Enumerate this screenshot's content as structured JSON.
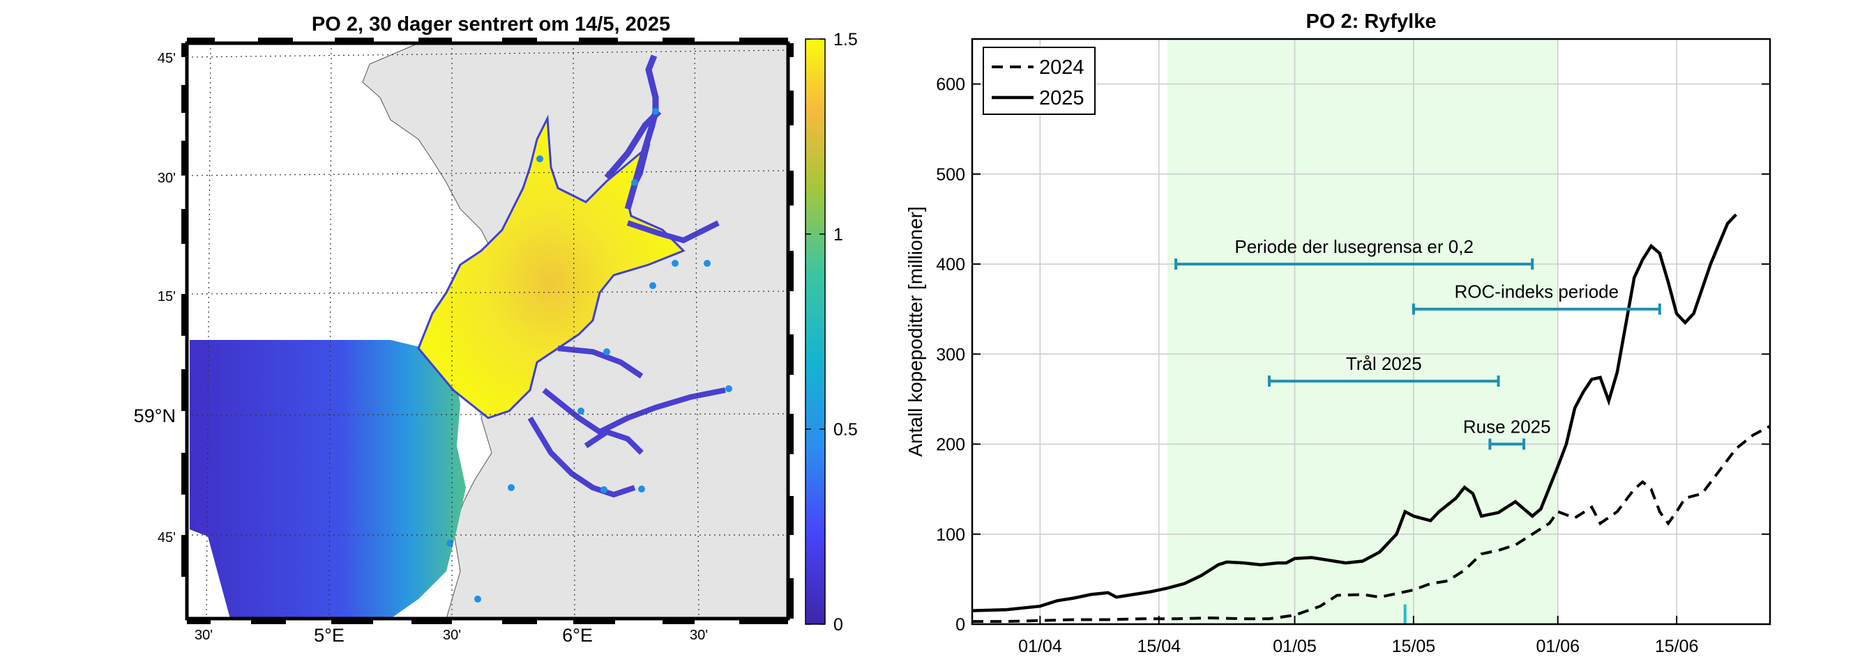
{
  "map_panel": {
    "title": "PO 2, 30 dager sentrert om 14/5, 2025",
    "lat_ticks": [
      "45'",
      "30'",
      "15'",
      "59°N",
      "45'"
    ],
    "lon_ticks": [
      "30'",
      "5°E",
      "30'",
      "6°E",
      "30'"
    ],
    "colorbar": {
      "ticks": [
        "1.5",
        "1",
        "0.5",
        "0"
      ],
      "tick_values": [
        1.5,
        1.0,
        0.5,
        0.0
      ],
      "range": [
        0,
        1.5
      ],
      "colormap": "parula"
    },
    "colors": {
      "land": "#e4e4e4",
      "sea_blank": "#ffffff",
      "station_marker": "#1f8fe8"
    }
  },
  "chart_data": {
    "type": "line",
    "title": "PO 2: Ryfylke",
    "ylabel": "Antall kopepoditter [millioner]",
    "xlabel": "",
    "x_range": [
      "2025-03-24",
      "2025-06-26"
    ],
    "ylim": [
      0,
      650
    ],
    "y_ticks": [
      0,
      100,
      200,
      300,
      400,
      500,
      600
    ],
    "x_ticks": [
      {
        "date": "2025-04-01",
        "label": "01/04"
      },
      {
        "date": "2025-04-15",
        "label": "15/04"
      },
      {
        "date": "2025-05-01",
        "label": "01/05"
      },
      {
        "date": "2025-05-15",
        "label": "15/05"
      },
      {
        "date": "2025-06-01",
        "label": "01/06"
      },
      {
        "date": "2025-06-15",
        "label": "15/06"
      }
    ],
    "grid": true,
    "legend_position": "top-left",
    "shaded_period": {
      "start": "2025-04-16",
      "end": "2025-06-01",
      "color": "#e8fce8"
    },
    "series": [
      {
        "name": "2024",
        "style": "dashed",
        "color": "#000000",
        "points": [
          [
            "2025-03-24",
            3
          ],
          [
            "2025-03-28",
            3
          ],
          [
            "2025-04-01",
            4
          ],
          [
            "2025-04-05",
            5
          ],
          [
            "2025-04-09",
            5
          ],
          [
            "2025-04-13",
            6
          ],
          [
            "2025-04-17",
            6
          ],
          [
            "2025-04-21",
            7
          ],
          [
            "2025-04-25",
            6
          ],
          [
            "2025-04-28",
            6
          ],
          [
            "2025-05-01",
            10
          ],
          [
            "2025-05-04",
            20
          ],
          [
            "2025-05-06",
            32
          ],
          [
            "2025-05-09",
            33
          ],
          [
            "2025-05-11",
            30
          ],
          [
            "2025-05-13",
            34
          ],
          [
            "2025-05-15",
            38
          ],
          [
            "2025-05-17",
            45
          ],
          [
            "2025-05-19",
            48
          ],
          [
            "2025-05-21",
            60
          ],
          [
            "2025-05-23",
            78
          ],
          [
            "2025-05-25",
            82
          ],
          [
            "2025-05-27",
            88
          ],
          [
            "2025-05-29",
            100
          ],
          [
            "2025-05-31",
            112
          ],
          [
            "2025-06-01",
            125
          ],
          [
            "2025-06-03",
            118
          ],
          [
            "2025-06-05",
            130
          ],
          [
            "2025-06-06",
            112
          ],
          [
            "2025-06-08",
            125
          ],
          [
            "2025-06-10",
            150
          ],
          [
            "2025-06-11",
            158
          ],
          [
            "2025-06-12",
            150
          ],
          [
            "2025-06-13",
            125
          ],
          [
            "2025-06-14",
            112
          ],
          [
            "2025-06-15",
            125
          ],
          [
            "2025-06-16",
            140
          ],
          [
            "2025-06-18",
            145
          ],
          [
            "2025-06-20",
            170
          ],
          [
            "2025-06-22",
            195
          ],
          [
            "2025-06-24",
            210
          ],
          [
            "2025-06-26",
            220
          ]
        ]
      },
      {
        "name": "2025",
        "style": "solid",
        "color": "#000000",
        "points": [
          [
            "2025-03-24",
            15
          ],
          [
            "2025-03-28",
            16
          ],
          [
            "2025-04-01",
            20
          ],
          [
            "2025-04-03",
            26
          ],
          [
            "2025-04-05",
            29
          ],
          [
            "2025-04-07",
            33
          ],
          [
            "2025-04-09",
            35
          ],
          [
            "2025-04-10",
            30
          ],
          [
            "2025-04-12",
            33
          ],
          [
            "2025-04-14",
            36
          ],
          [
            "2025-04-16",
            40
          ],
          [
            "2025-04-18",
            45
          ],
          [
            "2025-04-20",
            54
          ],
          [
            "2025-04-22",
            66
          ],
          [
            "2025-04-23",
            69
          ],
          [
            "2025-04-25",
            68
          ],
          [
            "2025-04-27",
            66
          ],
          [
            "2025-04-29",
            68
          ],
          [
            "2025-04-30",
            68
          ],
          [
            "2025-05-01",
            73
          ],
          [
            "2025-05-03",
            74
          ],
          [
            "2025-05-05",
            71
          ],
          [
            "2025-05-07",
            68
          ],
          [
            "2025-05-09",
            70
          ],
          [
            "2025-05-11",
            80
          ],
          [
            "2025-05-13",
            100
          ],
          [
            "2025-05-14",
            125
          ],
          [
            "2025-05-15",
            120
          ],
          [
            "2025-05-17",
            115
          ],
          [
            "2025-05-18",
            125
          ],
          [
            "2025-05-20",
            140
          ],
          [
            "2025-05-21",
            152
          ],
          [
            "2025-05-22",
            145
          ],
          [
            "2025-05-23",
            120
          ],
          [
            "2025-05-25",
            124
          ],
          [
            "2025-05-27",
            136
          ],
          [
            "2025-05-29",
            120
          ],
          [
            "2025-05-30",
            128
          ],
          [
            "2025-06-01",
            175
          ],
          [
            "2025-06-02",
            200
          ],
          [
            "2025-06-03",
            240
          ],
          [
            "2025-06-04",
            258
          ],
          [
            "2025-06-05",
            272
          ],
          [
            "2025-06-06",
            274
          ],
          [
            "2025-06-07",
            248
          ],
          [
            "2025-06-08",
            280
          ],
          [
            "2025-06-10",
            385
          ],
          [
            "2025-06-11",
            405
          ],
          [
            "2025-06-12",
            420
          ],
          [
            "2025-06-13",
            412
          ],
          [
            "2025-06-14",
            380
          ],
          [
            "2025-06-15",
            345
          ],
          [
            "2025-06-16",
            335
          ],
          [
            "2025-06-17",
            345
          ],
          [
            "2025-06-19",
            400
          ],
          [
            "2025-06-21",
            445
          ],
          [
            "2025-06-22",
            455
          ]
        ]
      }
    ],
    "intervals": [
      {
        "label": "Periode der lusegrensa er 0,2",
        "start": "2025-04-17",
        "end": "2025-05-29",
        "y": 400,
        "color": "#1f8fb0"
      },
      {
        "label": "ROC-indeks periode",
        "start": "2025-05-15",
        "end": "2025-06-13",
        "y": 350,
        "color": "#1f8fb0"
      },
      {
        "label": "Trål 2025",
        "start": "2025-04-28",
        "end": "2025-05-25",
        "y": 270,
        "color": "#1f8fb0"
      },
      {
        "label": "Ruse 2025",
        "start": "2025-05-24",
        "end": "2025-05-28",
        "y": 200,
        "color": "#1f8fb0"
      }
    ],
    "marker": {
      "date": "2025-05-14",
      "y_from": 0,
      "y_to": 22,
      "color": "#20c0c0"
    }
  }
}
